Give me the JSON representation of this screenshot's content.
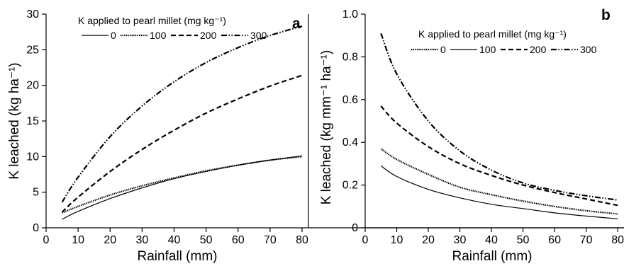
{
  "colors": {
    "ink": "#000000",
    "background": "#ffffff"
  },
  "chart_data": [
    {
      "type": "line",
      "panel_label": "a",
      "xlabel": "Rainfall (mm)",
      "ylabel": "K leached (kg ha⁻¹)",
      "xlim": [
        0,
        82
      ],
      "ylim": [
        0,
        30
      ],
      "xticks": [
        0,
        10,
        20,
        30,
        40,
        50,
        60,
        70,
        80
      ],
      "yticks": [
        0,
        5,
        10,
        15,
        20,
        25,
        30
      ],
      "grid": false,
      "legend": {
        "title": "K applied to pearl millet (mg kg⁻¹)",
        "placement": "top-left",
        "entries": [
          "0",
          "100",
          "200",
          "300"
        ]
      },
      "x": [
        5,
        10,
        20,
        30,
        40,
        50,
        60,
        70,
        80
      ],
      "series": [
        {
          "name": "0",
          "style": "solid",
          "values": [
            1.2,
            2.3,
            4.1,
            5.6,
            6.9,
            7.9,
            8.8,
            9.5,
            10.1
          ]
        },
        {
          "name": "100",
          "style": "dotted",
          "values": [
            2.1,
            3.0,
            4.6,
            5.9,
            7.0,
            8.0,
            8.8,
            9.5,
            10.0
          ]
        },
        {
          "name": "200",
          "style": "dashed",
          "values": [
            2.2,
            4.3,
            7.9,
            11.0,
            13.7,
            16.1,
            18.1,
            19.9,
            21.4
          ]
        },
        {
          "name": "300",
          "style": "dash-dot-dot",
          "values": [
            3.6,
            7.1,
            12.8,
            17.1,
            20.5,
            23.2,
            25.3,
            27.0,
            28.3
          ]
        }
      ]
    },
    {
      "type": "line",
      "panel_label": "b",
      "xlabel": "Rainfall (mm)",
      "ylabel": "K leached (kg mm⁻¹ ha⁻¹)",
      "xlim": [
        0,
        82
      ],
      "ylim": [
        0,
        1.0
      ],
      "xticks": [
        0,
        10,
        20,
        30,
        40,
        50,
        60,
        70,
        80
      ],
      "yticks": [
        "0",
        "0.2",
        "0.4",
        "0.6",
        "0.8",
        "1.0"
      ],
      "grid": false,
      "legend": {
        "title": "K applied to pearl millet (mg kg⁻¹)",
        "placement": "top-right",
        "entries": [
          "0",
          "100",
          "200",
          "300"
        ]
      },
      "x": [
        5,
        10,
        20,
        30,
        40,
        50,
        60,
        70,
        80
      ],
      "series": [
        {
          "name": "0",
          "style": "dotted",
          "values": [
            0.37,
            0.32,
            0.25,
            0.19,
            0.155,
            0.125,
            0.1,
            0.08,
            0.065
          ]
        },
        {
          "name": "100",
          "style": "solid",
          "values": [
            0.29,
            0.24,
            0.18,
            0.14,
            0.11,
            0.09,
            0.07,
            0.055,
            0.042
          ]
        },
        {
          "name": "200",
          "style": "dashed",
          "values": [
            0.57,
            0.49,
            0.38,
            0.3,
            0.245,
            0.2,
            0.165,
            0.135,
            0.105
          ]
        },
        {
          "name": "300",
          "style": "dash-dot-dot",
          "values": [
            0.91,
            0.72,
            0.5,
            0.36,
            0.27,
            0.21,
            0.175,
            0.15,
            0.13
          ]
        }
      ]
    }
  ]
}
